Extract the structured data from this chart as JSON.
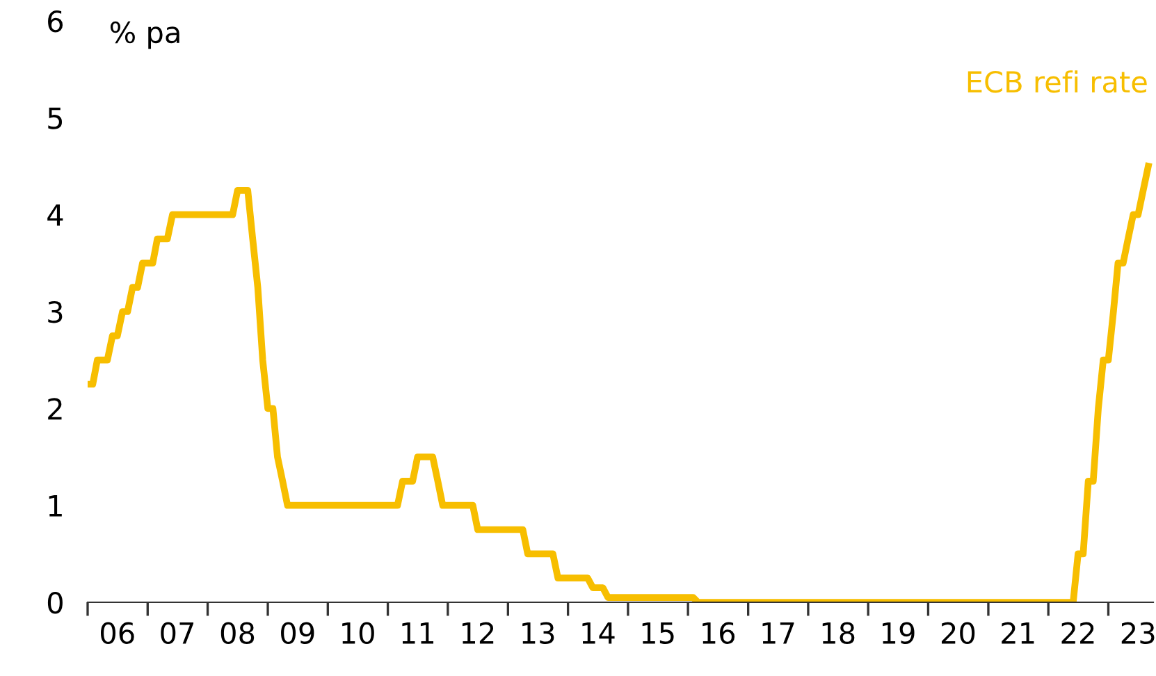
{
  "chart_data": {
    "type": "line",
    "ylabel": "% pa",
    "legend": false,
    "grid": false,
    "marker": "none",
    "line_style": "solid",
    "x": [
      "2006-01",
      "2006-02",
      "2006-03",
      "2006-05",
      "2006-06",
      "2006-07",
      "2006-08",
      "2006-09",
      "2006-10",
      "2006-11",
      "2006-12",
      "2007-02",
      "2007-03",
      "2007-05",
      "2007-06",
      "2008-06",
      "2008-07",
      "2008-09",
      "2008-10",
      "2008-11",
      "2008-12",
      "2009-01",
      "2009-02",
      "2009-03",
      "2009-04",
      "2009-05",
      "2011-03",
      "2011-04",
      "2011-06",
      "2011-07",
      "2011-10",
      "2011-11",
      "2011-12",
      "2012-06",
      "2012-07",
      "2013-04",
      "2013-05",
      "2013-10",
      "2013-11",
      "2014-05",
      "2014-06",
      "2014-08",
      "2014-09",
      "2016-02",
      "2016-03",
      "2022-06",
      "2022-07",
      "2022-08",
      "2022-09",
      "2022-10",
      "2022-11",
      "2022-12",
      "2023-01",
      "2023-02",
      "2023-03",
      "2023-04",
      "2023-05",
      "2023-06",
      "2023-07",
      "2023-08",
      "2023-09"
    ],
    "series": [
      {
        "name": "ECB refi rate",
        "color": "#f7be00",
        "values": [
          2.25,
          2.25,
          2.5,
          2.5,
          2.75,
          2.75,
          3.0,
          3.0,
          3.25,
          3.25,
          3.5,
          3.5,
          3.75,
          3.75,
          4.0,
          4.0,
          4.25,
          4.25,
          3.75,
          3.25,
          2.5,
          2.0,
          2.0,
          1.5,
          1.25,
          1.0,
          1.0,
          1.25,
          1.25,
          1.5,
          1.5,
          1.25,
          1.0,
          1.0,
          0.75,
          0.75,
          0.5,
          0.5,
          0.25,
          0.25,
          0.15,
          0.15,
          0.05,
          0.05,
          0.0,
          0.0,
          0.5,
          0.5,
          1.25,
          1.25,
          2.0,
          2.5,
          2.5,
          3.0,
          3.5,
          3.5,
          3.75,
          4.0,
          4.0,
          4.25,
          4.5
        ]
      }
    ],
    "xlim": [
      "2006-01-01",
      "2023-10-01"
    ],
    "xticks": [
      {
        "value": "2006-01-01",
        "label": null
      },
      {
        "value": "2006-07-01",
        "label": "06"
      },
      {
        "value": "2007-01-01",
        "label": null
      },
      {
        "value": "2007-07-01",
        "label": "07"
      },
      {
        "value": "2008-01-01",
        "label": null
      },
      {
        "value": "2008-07-01",
        "label": "08"
      },
      {
        "value": "2009-01-01",
        "label": null
      },
      {
        "value": "2009-07-01",
        "label": "09"
      },
      {
        "value": "2010-01-01",
        "label": null
      },
      {
        "value": "2010-07-01",
        "label": "10"
      },
      {
        "value": "2011-01-01",
        "label": null
      },
      {
        "value": "2011-07-01",
        "label": "11"
      },
      {
        "value": "2012-01-01",
        "label": null
      },
      {
        "value": "2012-07-01",
        "label": "12"
      },
      {
        "value": "2013-01-01",
        "label": null
      },
      {
        "value": "2013-07-01",
        "label": "13"
      },
      {
        "value": "2014-01-01",
        "label": null
      },
      {
        "value": "2014-07-01",
        "label": "14"
      },
      {
        "value": "2015-01-01",
        "label": null
      },
      {
        "value": "2015-07-01",
        "label": "15"
      },
      {
        "value": "2016-01-01",
        "label": null
      },
      {
        "value": "2016-07-01",
        "label": "16"
      },
      {
        "value": "2017-01-01",
        "label": null
      },
      {
        "value": "2017-07-01",
        "label": "17"
      },
      {
        "value": "2018-01-01",
        "label": null
      },
      {
        "value": "2018-07-01",
        "label": "18"
      },
      {
        "value": "2019-01-01",
        "label": null
      },
      {
        "value": "2019-07-01",
        "label": "19"
      },
      {
        "value": "2020-01-01",
        "label": null
      },
      {
        "value": "2020-07-01",
        "label": "20"
      },
      {
        "value": "2021-01-01",
        "label": null
      },
      {
        "value": "2021-07-01",
        "label": "21"
      },
      {
        "value": "2022-01-01",
        "label": null
      },
      {
        "value": "2022-07-01",
        "label": "22"
      },
      {
        "value": "2023-01-01",
        "label": null
      },
      {
        "value": "2023-07-01",
        "label": "23"
      }
    ],
    "ylim": [
      0,
      6
    ],
    "yticks": [
      0,
      1,
      2,
      3,
      4,
      5,
      6
    ]
  }
}
